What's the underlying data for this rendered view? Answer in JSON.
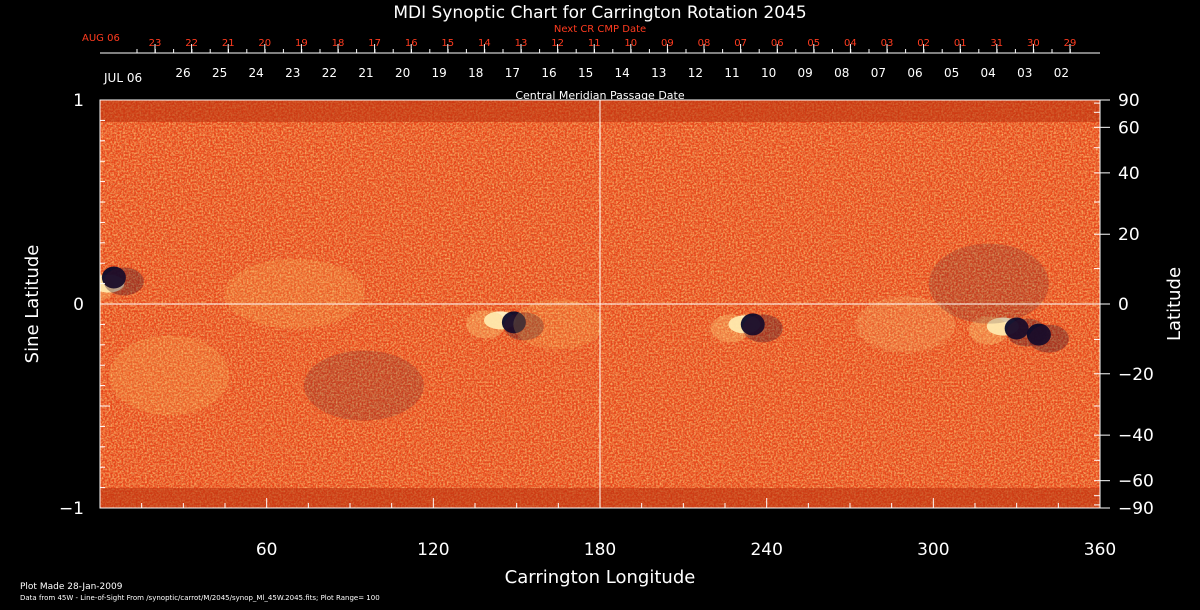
{
  "chart_data": {
    "type": "heatmap",
    "title": "MDI Synoptic Chart for Carrington Rotation 2045",
    "xlabel": "Carrington Longitude",
    "ylabel_left": "Sine Latitude",
    "ylabel_right": "Latitude",
    "xlim": [
      0,
      360
    ],
    "ylim": [
      -1,
      1
    ],
    "x_ticks": [
      60,
      120,
      180,
      240,
      300,
      360
    ],
    "y_ticks_left": [
      {
        "v": 1,
        "label": "1"
      },
      {
        "v": 0,
        "label": "0"
      },
      {
        "v": -1,
        "label": "−1"
      }
    ],
    "y_ticks_right": [
      {
        "deg": 90,
        "label": "90"
      },
      {
        "deg": 60,
        "label": "60"
      },
      {
        "deg": 40,
        "label": "40"
      },
      {
        "deg": 20,
        "label": "20"
      },
      {
        "deg": 0,
        "label": "0"
      },
      {
        "deg": -20,
        "label": "−20"
      },
      {
        "deg": -40,
        "label": "−40"
      },
      {
        "deg": -60,
        "label": "−60"
      },
      {
        "deg": -90,
        "label": "−90"
      }
    ],
    "top_axis_title": "Central Meridian Passage Date",
    "top_axis_month": "JUL 06",
    "top_axis_dates": [
      "26",
      "25",
      "24",
      "23",
      "22",
      "21",
      "20",
      "19",
      "18",
      "17",
      "16",
      "15",
      "14",
      "13",
      "12",
      "11",
      "10",
      "09",
      "08",
      "07",
      "06",
      "05",
      "04",
      "03",
      "02"
    ],
    "next_cr_title": "Next CR CMP Date",
    "next_cr_month": "AUG 06",
    "next_cr_dates": [
      "23",
      "22",
      "21",
      "20",
      "19",
      "18",
      "17",
      "16",
      "15",
      "14",
      "13",
      "12",
      "11",
      "10",
      "09",
      "08",
      "07",
      "06",
      "05",
      "04",
      "03",
      "02",
      "01",
      "31",
      "30",
      "29"
    ],
    "plot_range": 100,
    "gridlines": {
      "longitude": 180,
      "sine_latitude": 0
    },
    "colors": {
      "background": "#000000",
      "field_base": "#e8461a",
      "field_weak": "#c7360f",
      "positive_polarity": "#fff6c8",
      "negative_polarity": "#0a0a2a",
      "next_cr_color": "#ff3b1f",
      "axis_color": "#ffffff"
    },
    "active_regions": [
      {
        "lon": 3,
        "sinlat": 0.1,
        "polarity": "positive"
      },
      {
        "lon": 5,
        "sinlat": 0.13,
        "polarity": "negative"
      },
      {
        "lon": 144,
        "sinlat": -0.08,
        "polarity": "positive"
      },
      {
        "lon": 149,
        "sinlat": -0.09,
        "polarity": "negative"
      },
      {
        "lon": 232,
        "sinlat": -0.1,
        "polarity": "positive"
      },
      {
        "lon": 235,
        "sinlat": -0.1,
        "polarity": "negative"
      },
      {
        "lon": 325,
        "sinlat": -0.11,
        "polarity": "positive"
      },
      {
        "lon": 330,
        "sinlat": -0.12,
        "polarity": "negative"
      },
      {
        "lon": 338,
        "sinlat": -0.15,
        "polarity": "negative"
      }
    ]
  },
  "footer": {
    "plot_made": "Plot Made 28-Jan-2009",
    "data_from": "Data from 45W - Line-of-Sight From /synoptic/carrot/M/2045/synop_Ml_45W.2045.fits; Plot Range=  100"
  }
}
